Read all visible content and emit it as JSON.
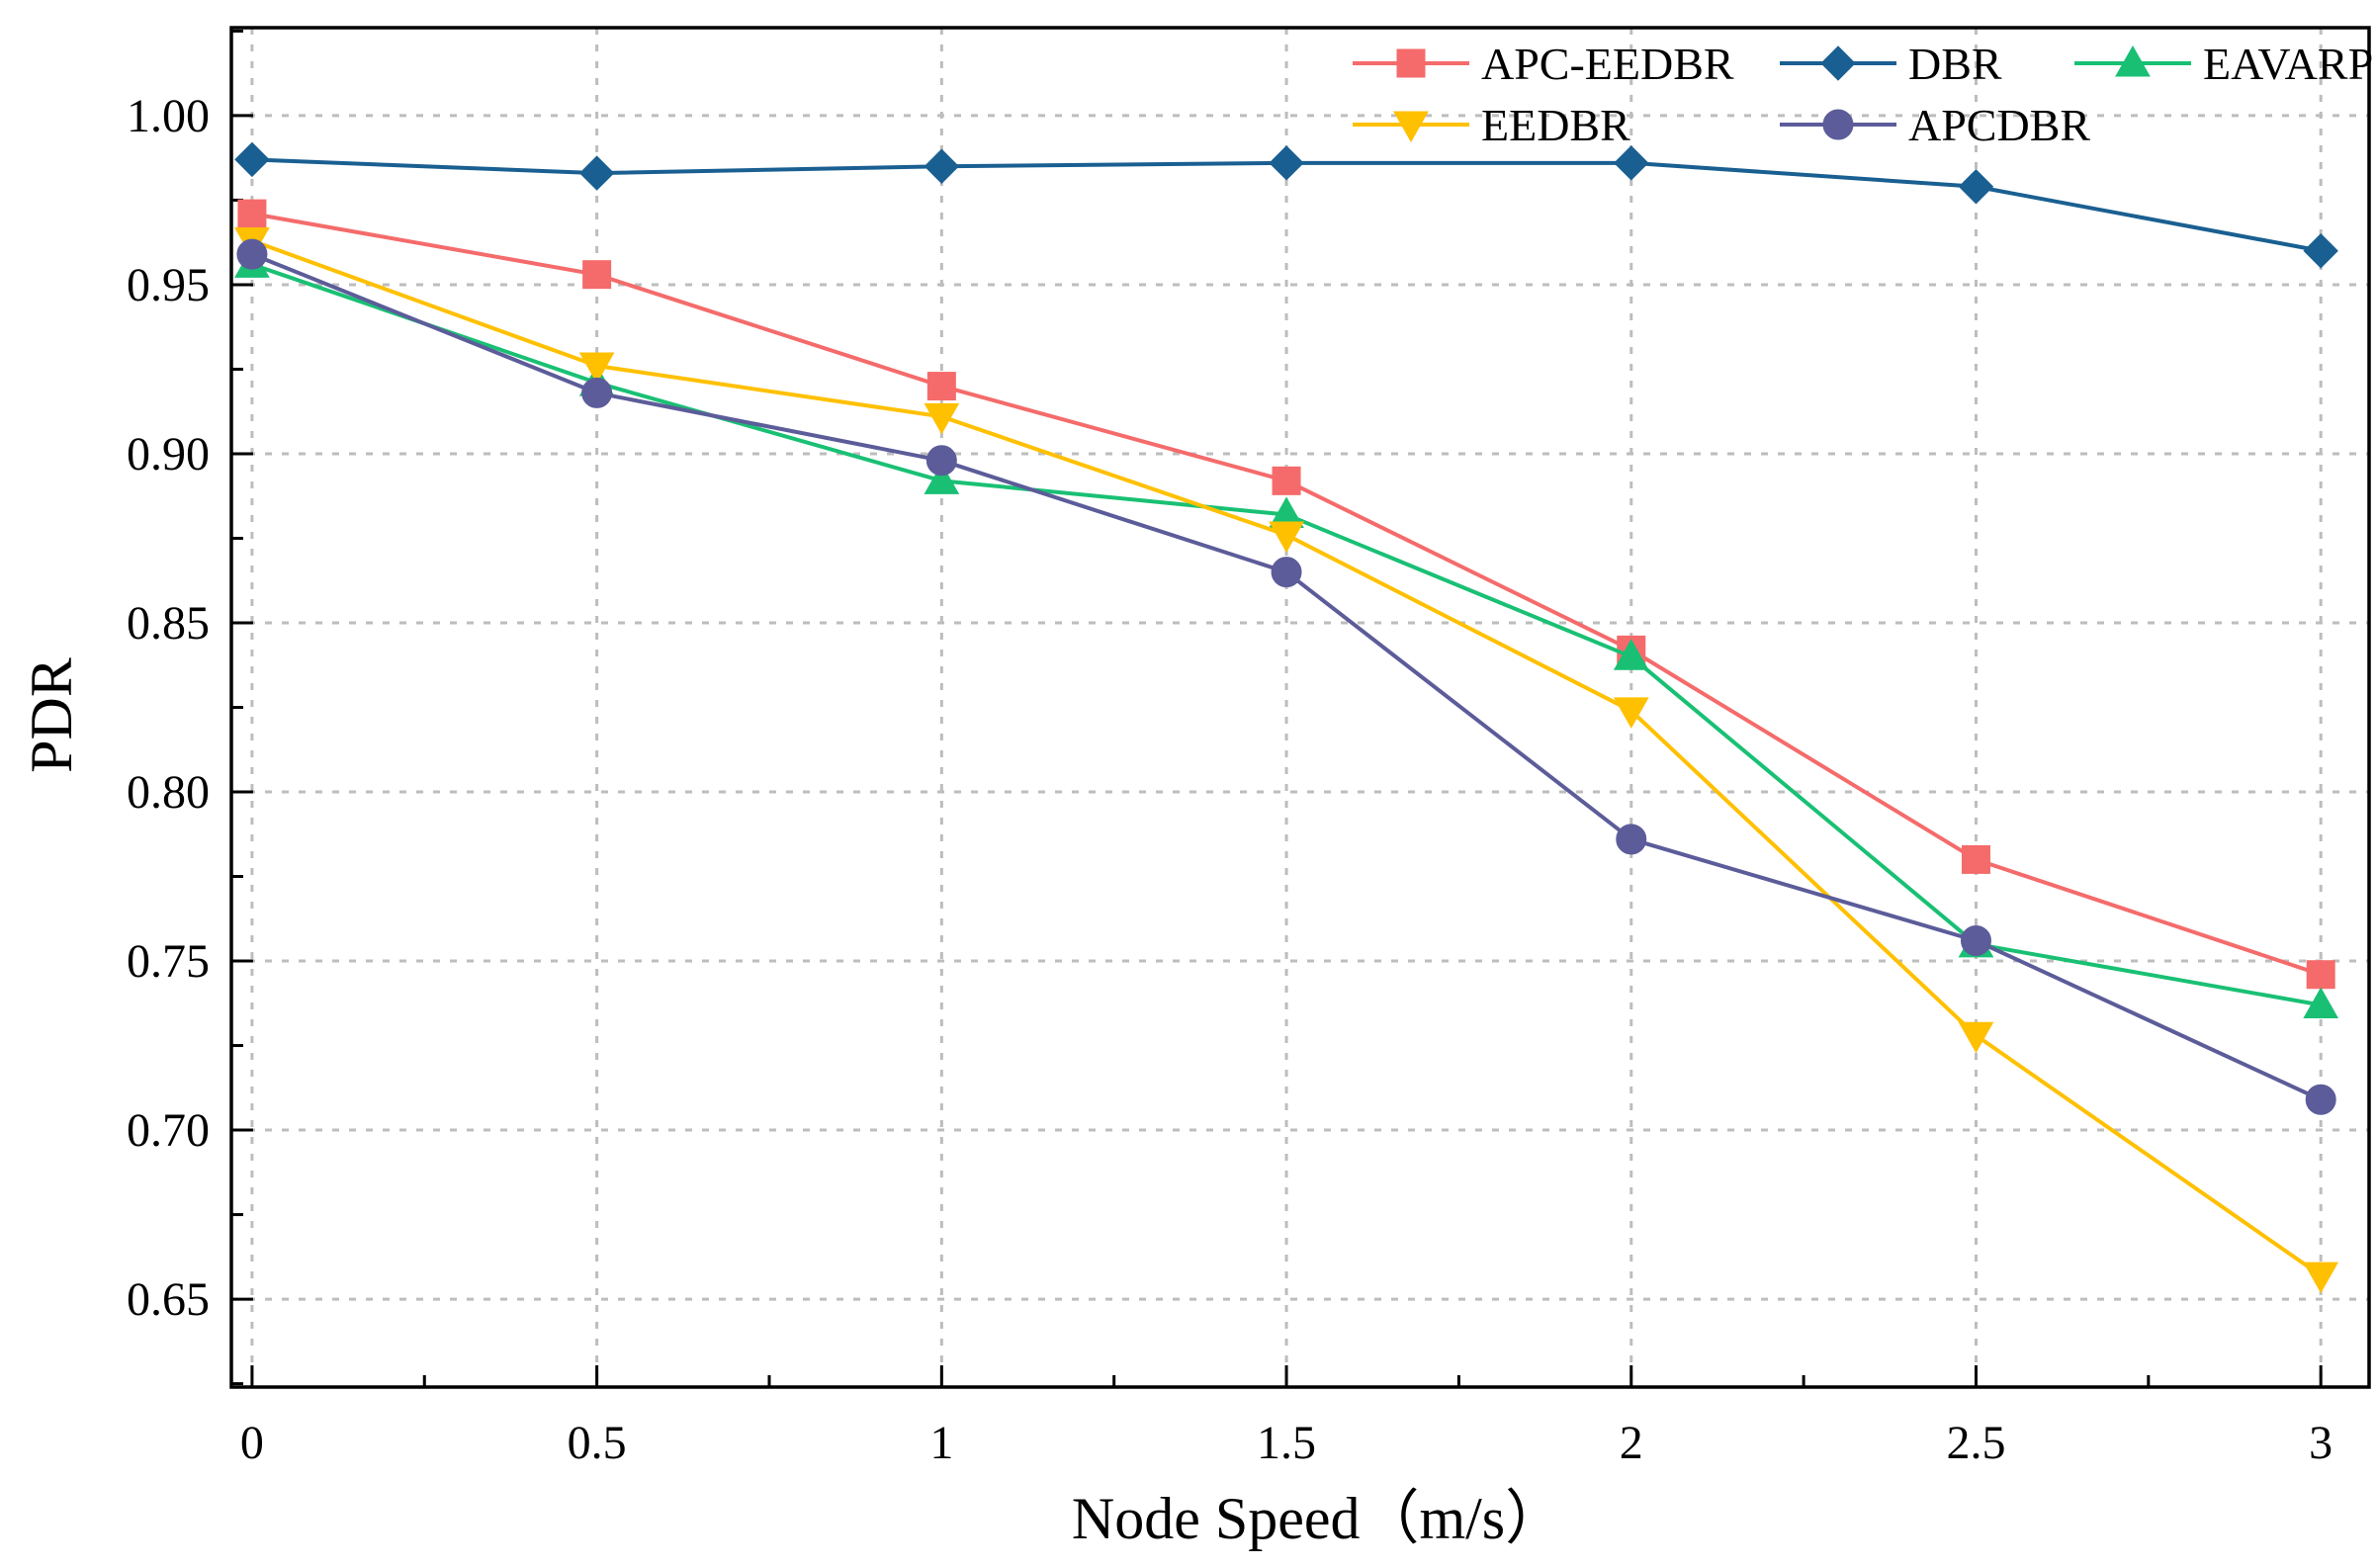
{
  "chart_data": {
    "type": "line",
    "title": "",
    "xlabel": "Node Speed（m/s）",
    "ylabel": "PDR",
    "x": [
      0,
      0.5,
      1,
      1.5,
      2,
      2.5,
      3
    ],
    "xticks": [
      "0",
      "0.5",
      "1",
      "1.5",
      "2",
      "2.5",
      "3"
    ],
    "yticks": [
      "0.65",
      "0.70",
      "0.75",
      "0.80",
      "0.85",
      "0.90",
      "0.95",
      "1.00"
    ],
    "xlim": [
      -0.03,
      3.07
    ],
    "ylim": [
      0.624,
      1.026
    ],
    "grid": true,
    "legend_position": "top-right",
    "series": [
      {
        "name": "APC-EEDBR",
        "color": "#f56b6b",
        "marker": "square",
        "values": [
          0.971,
          0.953,
          0.92,
          0.892,
          0.842,
          0.78,
          0.746
        ]
      },
      {
        "name": "DBR",
        "color": "#1a5f91",
        "marker": "diamond",
        "values": [
          0.987,
          0.983,
          0.985,
          0.986,
          0.986,
          0.979,
          0.96
        ]
      },
      {
        "name": "EAVARP",
        "color": "#19c074",
        "marker": "triangle-up",
        "values": [
          0.956,
          0.921,
          0.892,
          0.882,
          0.84,
          0.755,
          0.737
        ]
      },
      {
        "name": "EEDBR",
        "color": "#ffc000",
        "marker": "triangle-down",
        "values": [
          0.963,
          0.926,
          0.911,
          0.876,
          0.824,
          0.728,
          0.657
        ]
      },
      {
        "name": "APCDBR",
        "color": "#5c5c9a",
        "marker": "circle",
        "values": [
          0.959,
          0.918,
          0.898,
          0.865,
          0.786,
          0.756,
          0.709
        ]
      }
    ]
  }
}
